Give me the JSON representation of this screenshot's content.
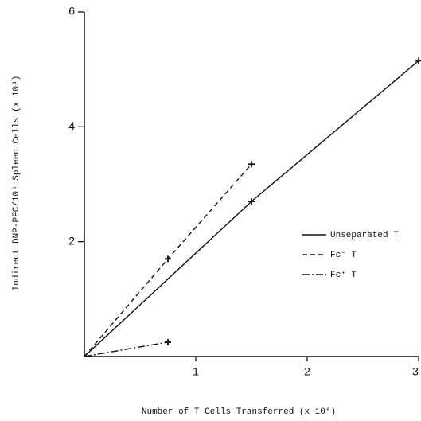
{
  "chart_data": {
    "type": "line",
    "xlabel": "Number of T Cells Transferred (x 10⁶)",
    "ylabel": "Indirect DNP-PFC/10⁶ Spleen Cells (x 10³)",
    "xlim": [
      0,
      3
    ],
    "xticks": [
      1,
      2,
      3
    ],
    "ylim": [
      0,
      6
    ],
    "yticks": [
      2,
      4,
      6
    ],
    "legend": "center right",
    "series": [
      {
        "name": "Unseparated T",
        "color": "#111111",
        "dash": "solid",
        "x": [
          0,
          1.5,
          3
        ],
        "values": [
          0,
          2.7,
          5.15
        ]
      },
      {
        "name": "Fc⁻ T",
        "color": "#111111",
        "dash": "dashed",
        "x": [
          0,
          0.75,
          1.5
        ],
        "values": [
          0,
          1.7,
          3.35
        ]
      },
      {
        "name": "Fc⁺ T",
        "color": "#111111",
        "dash": "dashdot",
        "x": [
          0,
          0.75
        ],
        "values": [
          0,
          0.25
        ]
      }
    ]
  }
}
